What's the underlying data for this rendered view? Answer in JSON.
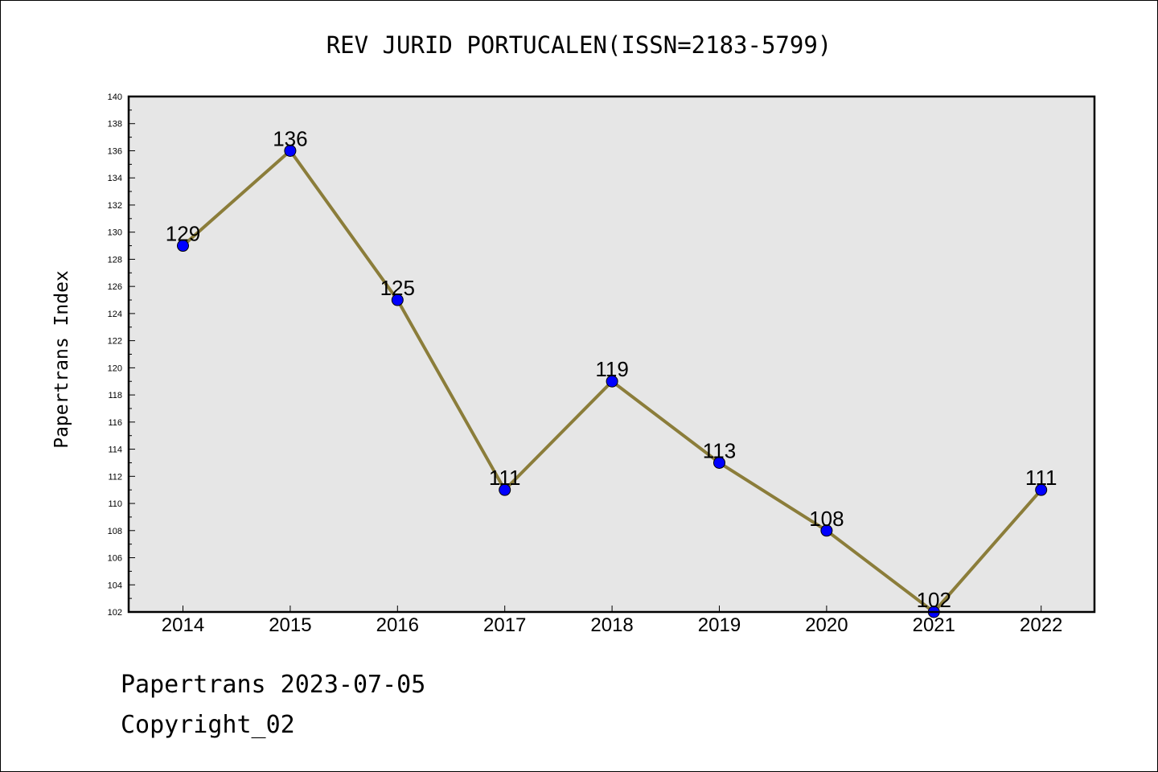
{
  "chart_data": {
    "type": "line",
    "title": "REV JURID PORTUCALEN(ISSN=2183-5799)",
    "xlabel": "",
    "ylabel": "Papertrans Index",
    "categories": [
      "2014",
      "2015",
      "2016",
      "2017",
      "2018",
      "2019",
      "2020",
      "2021",
      "2022"
    ],
    "series": [
      {
        "values": [
          129,
          136,
          125,
          111,
          119,
          113,
          108,
          102,
          111
        ]
      }
    ],
    "ylim": [
      102,
      140
    ],
    "yticks": [
      102,
      104,
      106,
      108,
      110,
      112,
      114,
      116,
      118,
      120,
      122,
      124,
      126,
      128,
      130,
      132,
      134,
      136,
      138,
      140
    ],
    "data_labels": true,
    "grid": false,
    "legend": "none",
    "colors": {
      "line": "#8b7d3a",
      "marker": "#0000ff",
      "plot_background": "#e6e6e6"
    }
  },
  "footer": {
    "date_text": "Papertrans 2023-07-05",
    "copyright_text": "Copyright_02"
  }
}
